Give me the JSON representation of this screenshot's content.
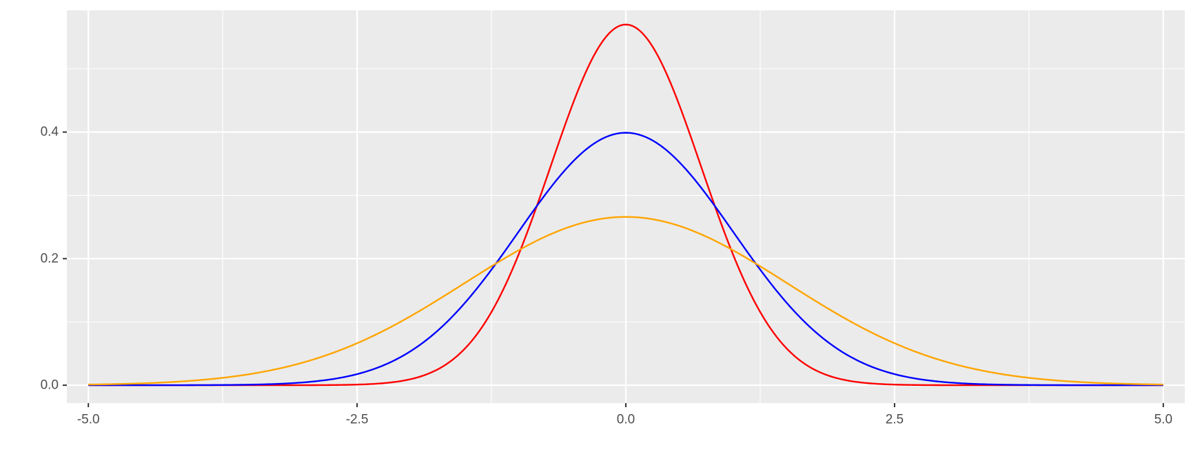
{
  "chart_data": {
    "type": "line",
    "title": "",
    "xlabel": "",
    "ylabel": "",
    "xlim": [
      -5.2,
      5.2
    ],
    "ylim": [
      -0.0282,
      0.5924
    ],
    "x_ticks": [
      -5.0,
      -2.5,
      0.0,
      2.5,
      5.0
    ],
    "x_tick_labels": [
      "-5.0",
      "-2.5",
      "0.0",
      "2.5",
      "5.0"
    ],
    "y_ticks": [
      0.0,
      0.2,
      0.4
    ],
    "y_tick_labels": [
      "0.0",
      "0.2",
      "0.4"
    ],
    "x_minor_ticks": [
      -3.75,
      -1.25,
      1.25,
      3.75
    ],
    "y_minor_ticks": [
      0.1,
      0.3,
      0.5
    ],
    "grid": true,
    "legend": "none",
    "panel_background": "#ebebeb",
    "x_range": [
      -5,
      5
    ],
    "series": [
      {
        "color": "#ff0000",
        "distribution": "normal",
        "mean": 0,
        "sd": 0.7,
        "x_peak": 0.0,
        "y_peak": 0.57
      },
      {
        "color": "#0000ff",
        "distribution": "normal",
        "mean": 0,
        "sd": 1.0,
        "x_peak": 0.0,
        "y_peak": 0.399
      },
      {
        "color": "#ffa500",
        "distribution": "normal",
        "mean": 0,
        "sd": 1.5,
        "x_peak": 0.0,
        "y_peak": 0.266
      }
    ]
  }
}
